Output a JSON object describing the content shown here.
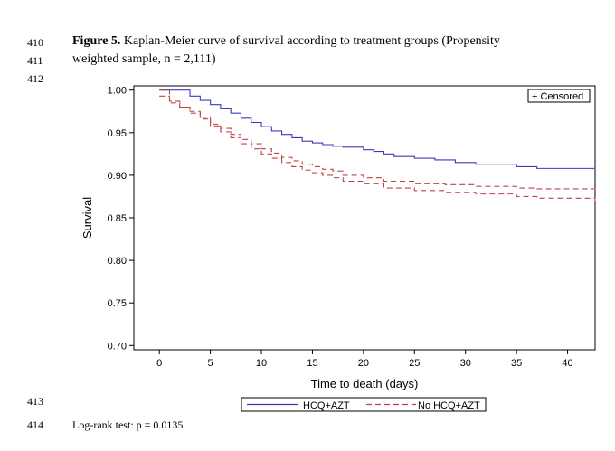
{
  "line_numbers": [
    "410",
    "411",
    "412",
    "413",
    "414"
  ],
  "caption": {
    "figure_label": "Figure 5.",
    "line1_text": " Kaplan-Meier curve of survival according to treatment groups (Propensity",
    "line2_text": "weighted sample, n = 2,111)"
  },
  "footer": {
    "logrank": "Log-rank test: p = 0.0135"
  },
  "colors": {
    "hcq_azt": "#3b3bbf",
    "no_hcq_azt": "#c0404a",
    "axis": "#000000"
  },
  "chart_data": {
    "type": "line",
    "title": "",
    "xlabel": "Time to death (days)",
    "ylabel": "Survival",
    "xlim": [
      -2.5,
      42.7
    ],
    "ylim": [
      0.695,
      1.005
    ],
    "x_ticks": [
      0,
      5,
      10,
      15,
      20,
      25,
      30,
      35,
      40
    ],
    "y_ticks": [
      0.7,
      0.75,
      0.8,
      0.85,
      0.9,
      0.95,
      1.0
    ],
    "y_tick_labels": [
      "0.70",
      "0.75",
      "0.80",
      "0.85",
      "0.90",
      "0.95",
      "1.00"
    ],
    "censored_legend": "+ Censored",
    "legend": [
      "HCQ+AZT",
      "No HCQ+AZT"
    ],
    "series": [
      {
        "name": "HCQ+AZT",
        "style": "solid",
        "steps": [
          [
            0,
            1.0
          ],
          [
            3,
            0.993
          ],
          [
            4,
            0.988
          ],
          [
            5,
            0.983
          ],
          [
            6,
            0.978
          ],
          [
            7,
            0.973
          ],
          [
            8,
            0.967
          ],
          [
            9,
            0.962
          ],
          [
            10,
            0.957
          ],
          [
            11,
            0.952
          ],
          [
            12,
            0.948
          ],
          [
            13,
            0.944
          ],
          [
            14,
            0.94
          ],
          [
            15,
            0.938
          ],
          [
            16,
            0.936
          ],
          [
            17,
            0.934
          ],
          [
            18,
            0.933
          ],
          [
            20,
            0.93
          ],
          [
            21,
            0.928
          ],
          [
            22,
            0.925
          ],
          [
            23,
            0.922
          ],
          [
            25,
            0.92
          ],
          [
            27,
            0.918
          ],
          [
            29,
            0.915
          ],
          [
            31,
            0.913
          ],
          [
            35,
            0.91
          ],
          [
            37,
            0.908
          ],
          [
            42.7,
            0.907
          ]
        ]
      },
      {
        "name": "No HCQ+AZT",
        "style": "dashed",
        "steps": [
          [
            0,
            0.993
          ],
          [
            1,
            0.985
          ],
          [
            2,
            0.98
          ],
          [
            3,
            0.975
          ],
          [
            4,
            0.968
          ],
          [
            5,
            0.96
          ],
          [
            6,
            0.955
          ],
          [
            7,
            0.948
          ],
          [
            8,
            0.942
          ],
          [
            9,
            0.937
          ],
          [
            10,
            0.931
          ],
          [
            11,
            0.926
          ],
          [
            12,
            0.921
          ],
          [
            13,
            0.917
          ],
          [
            14,
            0.913
          ],
          [
            15,
            0.91
          ],
          [
            16,
            0.907
          ],
          [
            17,
            0.905
          ],
          [
            18,
            0.9
          ],
          [
            20,
            0.897
          ],
          [
            22,
            0.893
          ],
          [
            25,
            0.89
          ],
          [
            28,
            0.889
          ],
          [
            31,
            0.887
          ],
          [
            35,
            0.885
          ],
          [
            37,
            0.884
          ],
          [
            42.7,
            0.883
          ]
        ]
      },
      {
        "name": "No HCQ+AZT (lower)",
        "style": "dashed",
        "steps": [
          [
            0,
            1.0
          ],
          [
            1,
            0.987
          ],
          [
            2,
            0.98
          ],
          [
            3,
            0.973
          ],
          [
            4,
            0.966
          ],
          [
            5,
            0.958
          ],
          [
            6,
            0.951
          ],
          [
            7,
            0.944
          ],
          [
            8,
            0.937
          ],
          [
            9,
            0.931
          ],
          [
            10,
            0.925
          ],
          [
            11,
            0.92
          ],
          [
            12,
            0.915
          ],
          [
            13,
            0.91
          ],
          [
            14,
            0.906
          ],
          [
            15,
            0.903
          ],
          [
            16,
            0.9
          ],
          [
            17,
            0.897
          ],
          [
            18,
            0.893
          ],
          [
            20,
            0.89
          ],
          [
            22,
            0.885
          ],
          [
            25,
            0.882
          ],
          [
            28,
            0.88
          ],
          [
            31,
            0.878
          ],
          [
            35,
            0.875
          ],
          [
            37,
            0.873
          ],
          [
            42.7,
            0.87
          ]
        ]
      }
    ]
  }
}
